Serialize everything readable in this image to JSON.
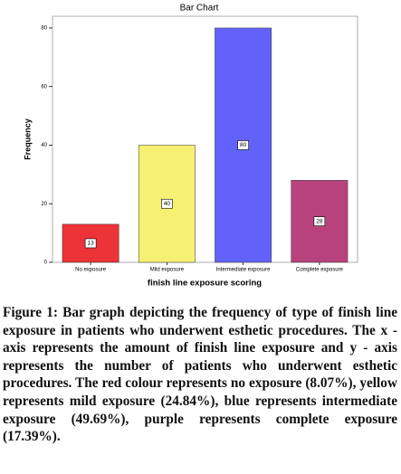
{
  "chart_data": {
    "type": "bar",
    "title": "Bar Chart",
    "xlabel": "finish line exposure scoring",
    "ylabel": "Frequency",
    "categories": [
      "No exposure",
      "Mild exposure",
      "Intermediate exposure",
      "Complete exposure"
    ],
    "values": [
      13,
      40,
      80,
      28
    ],
    "colors": [
      "#ec3338",
      "#f6f173",
      "#6262fb",
      "#b8437c"
    ],
    "ylim": [
      0,
      84
    ],
    "yticks": [
      0,
      20,
      40,
      60,
      80
    ],
    "grid": false
  },
  "caption": "Figure 1: Bar graph depicting the frequency of type of finish line exposure in patients who underwent esthetic procedures. The x - axis represents the amount of finish line exposure and y - axis represents the number of patients who underwent esthetic procedures. The red colour represents no exposure (8.07%), yellow represents mild exposure (24.84%), blue represents intermediate exposure (49.69%), purple represents complete exposure (17.39%)."
}
